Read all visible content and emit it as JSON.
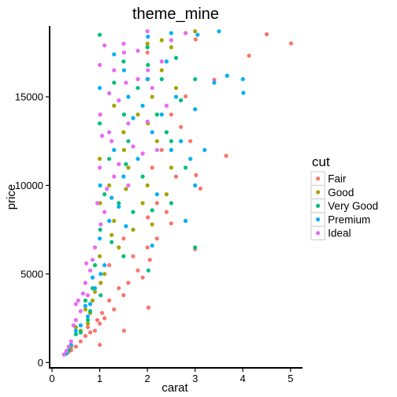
{
  "chart_data": {
    "type": "scatter",
    "title": "theme_mine",
    "xlabel": "carat",
    "ylabel": "price",
    "xlim": [
      -0.05,
      5.25
    ],
    "ylim": [
      -300,
      19000
    ],
    "x_ticks": [
      0,
      1,
      2,
      3,
      4,
      5
    ],
    "y_ticks": [
      0,
      5000,
      10000,
      15000
    ],
    "grid": false,
    "legend": {
      "title": "cut",
      "position": "right"
    },
    "series": [
      {
        "name": "Fair",
        "color": "#F8766D",
        "points": [
          [
            5.01,
            18018
          ],
          [
            4.5,
            18531
          ],
          [
            4.13,
            17329
          ],
          [
            3.65,
            11668
          ],
          [
            3.4,
            15964
          ],
          [
            3.01,
            18242
          ],
          [
            3.11,
            9823
          ],
          [
            3.02,
            10577
          ],
          [
            2.8,
            15030
          ],
          [
            2.5,
            7854
          ],
          [
            2.2,
            7000
          ],
          [
            2.0,
            6500
          ],
          [
            2.05,
            5800
          ],
          [
            1.8,
            5200
          ],
          [
            1.9,
            4800
          ],
          [
            1.6,
            4500
          ],
          [
            1.5,
            3800
          ],
          [
            1.4,
            4200
          ],
          [
            1.2,
            3500
          ],
          [
            1.3,
            3000
          ],
          [
            1.1,
            2500
          ],
          [
            1.0,
            2200
          ],
          [
            1.05,
            2800
          ],
          [
            0.9,
            1800
          ],
          [
            0.95,
            2400
          ],
          [
            0.8,
            1700
          ],
          [
            0.75,
            2000
          ],
          [
            0.7,
            1500
          ],
          [
            0.6,
            1200
          ],
          [
            0.5,
            900
          ],
          [
            0.4,
            700
          ],
          [
            0.35,
            600
          ],
          [
            2.5,
            14000
          ],
          [
            2.3,
            12000
          ],
          [
            2.1,
            11000
          ],
          [
            2.2,
            9000
          ],
          [
            2.4,
            8500
          ],
          [
            2.6,
            10500
          ],
          [
            1.7,
            6000
          ],
          [
            1.5,
            7000
          ],
          [
            1.2,
            5500
          ],
          [
            2.9,
            12500
          ],
          [
            2.01,
            8200
          ],
          [
            1.0,
            1000
          ],
          [
            1.51,
            1800
          ],
          [
            2.02,
            3100
          ],
          [
            2.0,
            17500
          ],
          [
            2.01,
            16000
          ],
          [
            3.0,
            6400
          ],
          [
            2.7,
            13300
          ]
        ]
      },
      {
        "name": "Good",
        "color": "#A3A500",
        "points": [
          [
            3.0,
            18700
          ],
          [
            2.8,
            18600
          ],
          [
            2.5,
            17800
          ],
          [
            2.3,
            16500
          ],
          [
            2.0,
            18000
          ],
          [
            2.1,
            15000
          ],
          [
            1.8,
            14000
          ],
          [
            1.5,
            13000
          ],
          [
            1.6,
            11000
          ],
          [
            1.2,
            10000
          ],
          [
            1.3,
            8000
          ],
          [
            1.0,
            6000
          ],
          [
            1.1,
            5000
          ],
          [
            0.9,
            4000
          ],
          [
            0.7,
            3000
          ],
          [
            0.5,
            2000
          ],
          [
            0.4,
            900
          ],
          [
            0.3,
            500
          ],
          [
            2.5,
            11000
          ],
          [
            2.2,
            12500
          ],
          [
            1.9,
            9000
          ],
          [
            1.7,
            7500
          ],
          [
            1.4,
            6500
          ],
          [
            1.01,
            9000
          ],
          [
            1.51,
            12000
          ],
          [
            2.01,
            13500
          ],
          [
            2.0,
            10000
          ],
          [
            1.02,
            4500
          ],
          [
            0.8,
            2800
          ],
          [
            0.6,
            1800
          ],
          [
            2.6,
            15500
          ],
          [
            2.4,
            9500
          ],
          [
            1.25,
            7200
          ],
          [
            1.55,
            9800
          ],
          [
            0.85,
            3500
          ],
          [
            2.3,
            18200
          ],
          [
            1.3,
            14500
          ],
          [
            1.0,
            11500
          ],
          [
            2.1,
            7800
          ],
          [
            0.75,
            2200
          ]
        ]
      },
      {
        "name": "Very Good",
        "color": "#00BF7D",
        "points": [
          [
            3.0,
            6500
          ],
          [
            2.8,
            11000
          ],
          [
            2.5,
            12500
          ],
          [
            2.3,
            16000
          ],
          [
            2.0,
            17800
          ],
          [
            2.2,
            14000
          ],
          [
            1.8,
            15500
          ],
          [
            1.5,
            17000
          ],
          [
            1.6,
            12500
          ],
          [
            1.2,
            11500
          ],
          [
            1.0,
            18500
          ],
          [
            1.1,
            9500
          ],
          [
            0.9,
            5500
          ],
          [
            0.7,
            3500
          ],
          [
            0.5,
            1600
          ],
          [
            0.35,
            700
          ],
          [
            0.3,
            500
          ],
          [
            2.5,
            9000
          ],
          [
            2.4,
            13000
          ],
          [
            1.9,
            10500
          ],
          [
            1.7,
            8500
          ],
          [
            1.4,
            9000
          ],
          [
            1.01,
            7500
          ],
          [
            1.51,
            14000
          ],
          [
            2.01,
            16800
          ],
          [
            1.02,
            3800
          ],
          [
            0.8,
            2900
          ],
          [
            0.6,
            1700
          ],
          [
            2.6,
            17200
          ],
          [
            2.1,
            8600
          ],
          [
            1.25,
            6800
          ],
          [
            1.55,
            11200
          ],
          [
            0.85,
            4200
          ],
          [
            1.3,
            15800
          ],
          [
            1.0,
            13500
          ],
          [
            0.75,
            2400
          ],
          [
            2.7,
            14800
          ],
          [
            3.0,
            16000
          ],
          [
            2.02,
            5200
          ],
          [
            1.5,
            6000
          ]
        ]
      },
      {
        "name": "Premium",
        "color": "#00B0F6",
        "points": [
          [
            4.01,
            15223
          ],
          [
            4.0,
            16000
          ],
          [
            3.67,
            16193
          ],
          [
            3.5,
            18700
          ],
          [
            3.05,
            18500
          ],
          [
            3.2,
            12000
          ],
          [
            3.0,
            10000
          ],
          [
            2.8,
            8000
          ],
          [
            2.5,
            12000
          ],
          [
            2.3,
            14000
          ],
          [
            2.0,
            16000
          ],
          [
            2.1,
            13000
          ],
          [
            1.8,
            11500
          ],
          [
            1.5,
            10500
          ],
          [
            1.6,
            15000
          ],
          [
            1.2,
            8000
          ],
          [
            1.3,
            12000
          ],
          [
            1.0,
            7000
          ],
          [
            1.1,
            5500
          ],
          [
            0.9,
            4200
          ],
          [
            0.7,
            3200
          ],
          [
            0.5,
            1800
          ],
          [
            0.4,
            1000
          ],
          [
            0.3,
            550
          ],
          [
            2.4,
            17000
          ],
          [
            2.2,
            9500
          ],
          [
            1.9,
            14500
          ],
          [
            1.7,
            13800
          ],
          [
            1.4,
            8800
          ],
          [
            1.01,
            10000
          ],
          [
            1.51,
            16500
          ],
          [
            2.01,
            18400
          ],
          [
            1.02,
            5000
          ],
          [
            0.8,
            3300
          ],
          [
            0.6,
            2100
          ],
          [
            2.6,
            15000
          ],
          [
            2.7,
            12500
          ],
          [
            1.25,
            9300
          ],
          [
            1.55,
            7700
          ],
          [
            0.85,
            4800
          ],
          [
            2.9,
            11500
          ],
          [
            1.0,
            15500
          ],
          [
            2.1,
            6600
          ],
          [
            0.75,
            2600
          ],
          [
            2.5,
            18600
          ],
          [
            3.4,
            15800
          ],
          [
            3.0,
            14300
          ],
          [
            1.3,
            17400
          ]
        ]
      },
      {
        "name": "Ideal",
        "color": "#E76BF3",
        "points": [
          [
            2.8,
            18600
          ],
          [
            2.5,
            18200
          ],
          [
            2.3,
            17000
          ],
          [
            2.0,
            18700
          ],
          [
            2.1,
            15500
          ],
          [
            1.8,
            16000
          ],
          [
            1.5,
            18000
          ],
          [
            1.6,
            13500
          ],
          [
            1.2,
            13000
          ],
          [
            1.3,
            10500
          ],
          [
            1.0,
            11000
          ],
          [
            1.1,
            8500
          ],
          [
            0.9,
            6500
          ],
          [
            0.7,
            4500
          ],
          [
            0.5,
            2400
          ],
          [
            0.4,
            1200
          ],
          [
            0.3,
            650
          ],
          [
            0.25,
            450
          ],
          [
            2.2,
            12000
          ],
          [
            1.9,
            11800
          ],
          [
            1.7,
            12200
          ],
          [
            1.4,
            11200
          ],
          [
            1.01,
            14000
          ],
          [
            1.51,
            17500
          ],
          [
            2.01,
            16500
          ],
          [
            1.02,
            7800
          ],
          [
            0.8,
            5200
          ],
          [
            0.6,
            2900
          ],
          [
            2.4,
            14500
          ],
          [
            1.25,
            12500
          ],
          [
            1.55,
            15800
          ],
          [
            0.85,
            5800
          ],
          [
            1.3,
            16500
          ],
          [
            1.0,
            16800
          ],
          [
            0.75,
            3800
          ],
          [
            0.55,
            3500
          ],
          [
            0.45,
            2100
          ],
          [
            0.65,
            3900
          ],
          [
            1.15,
            9800
          ],
          [
            1.2,
            15200
          ],
          [
            1.05,
            12800
          ],
          [
            0.95,
            9000
          ],
          [
            1.4,
            14800
          ],
          [
            1.8,
            17600
          ],
          [
            2.0,
            13600
          ],
          [
            1.6,
            10000
          ],
          [
            0.35,
            900
          ],
          [
            0.5,
            3300
          ],
          [
            0.72,
            5600
          ],
          [
            1.1,
            17900
          ]
        ]
      }
    ]
  }
}
